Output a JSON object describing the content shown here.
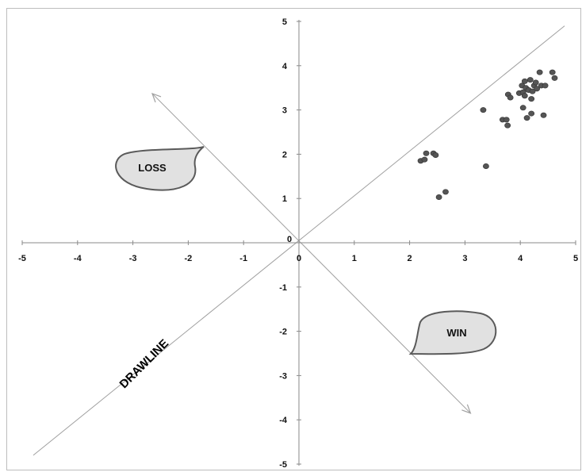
{
  "chart_data": {
    "type": "scatter",
    "title": "",
    "xlabel": "",
    "ylabel": "",
    "xlim": [
      -5,
      5
    ],
    "ylim": [
      -5,
      5
    ],
    "x_ticks": [
      -5,
      -4,
      -3,
      -2,
      -1,
      0,
      1,
      2,
      3,
      4,
      5
    ],
    "y_ticks": [
      -5,
      -4,
      -3,
      -2,
      -1,
      0,
      1,
      2,
      3,
      4,
      5
    ],
    "x_tick_labels": [
      "-5",
      "-4",
      "-3",
      "-2",
      "-1",
      "0",
      "1",
      "2",
      "3",
      "4",
      "5"
    ],
    "y_tick_labels": [
      "-5",
      "-4",
      "-3",
      "-2",
      "-1",
      "0",
      "1",
      "2",
      "3",
      "4",
      "5"
    ],
    "grid": false,
    "legend": "none",
    "point_color": "#555555",
    "line_color": "#a0a0a0",
    "series": [
      {
        "points": [
          [
            2.2,
            1.85
          ],
          [
            2.27,
            1.88
          ],
          [
            2.3,
            2.02
          ],
          [
            2.43,
            2.02
          ],
          [
            2.47,
            1.98
          ],
          [
            2.53,
            1.03
          ],
          [
            2.65,
            1.15
          ],
          [
            3.33,
            3.0
          ],
          [
            3.38,
            1.73
          ],
          [
            3.68,
            2.78
          ],
          [
            3.75,
            2.78
          ],
          [
            3.77,
            2.65
          ],
          [
            3.78,
            3.35
          ],
          [
            3.82,
            3.28
          ],
          [
            3.98,
            3.38
          ],
          [
            4.03,
            3.55
          ],
          [
            4.05,
            3.05
          ],
          [
            4.05,
            3.4
          ],
          [
            4.08,
            3.32
          ],
          [
            4.08,
            3.65
          ],
          [
            4.1,
            3.5
          ],
          [
            4.12,
            2.82
          ],
          [
            4.15,
            3.45
          ],
          [
            4.18,
            3.68
          ],
          [
            4.2,
            2.92
          ],
          [
            4.2,
            3.25
          ],
          [
            4.22,
            3.42
          ],
          [
            4.25,
            3.55
          ],
          [
            4.28,
            3.62
          ],
          [
            4.3,
            3.48
          ],
          [
            4.35,
            3.85
          ],
          [
            4.38,
            3.55
          ],
          [
            4.42,
            2.88
          ],
          [
            4.45,
            3.55
          ],
          [
            4.58,
            3.85
          ],
          [
            4.62,
            3.72
          ]
        ]
      }
    ],
    "annotations": {
      "drawline_label": "DRAWLINE",
      "loss_label": "LOSS",
      "win_label": "WIN"
    }
  }
}
